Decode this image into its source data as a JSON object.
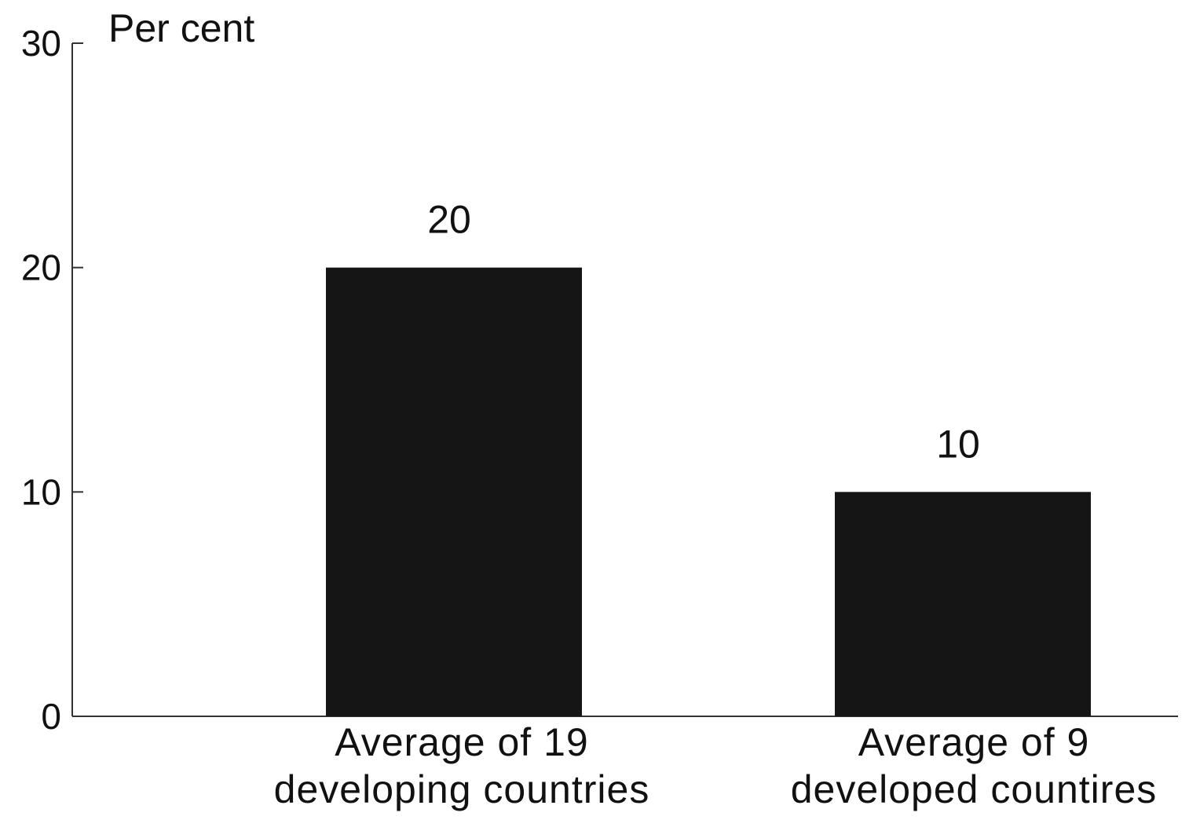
{
  "chart_data": {
    "type": "bar",
    "title": "",
    "xlabel": "",
    "ylabel": "Per cent",
    "ylim": [
      0,
      30
    ],
    "yticks": [
      0,
      10,
      20,
      30
    ],
    "grid": false,
    "legend": "none",
    "categories": [
      [
        "Average of 19",
        "developing countries"
      ],
      [
        "Average of 9",
        "developed countires"
      ]
    ],
    "values": [
      20,
      10
    ],
    "data_labels": [
      "20",
      "10"
    ],
    "bar_color": "#151515",
    "axis_color": "#333333"
  }
}
